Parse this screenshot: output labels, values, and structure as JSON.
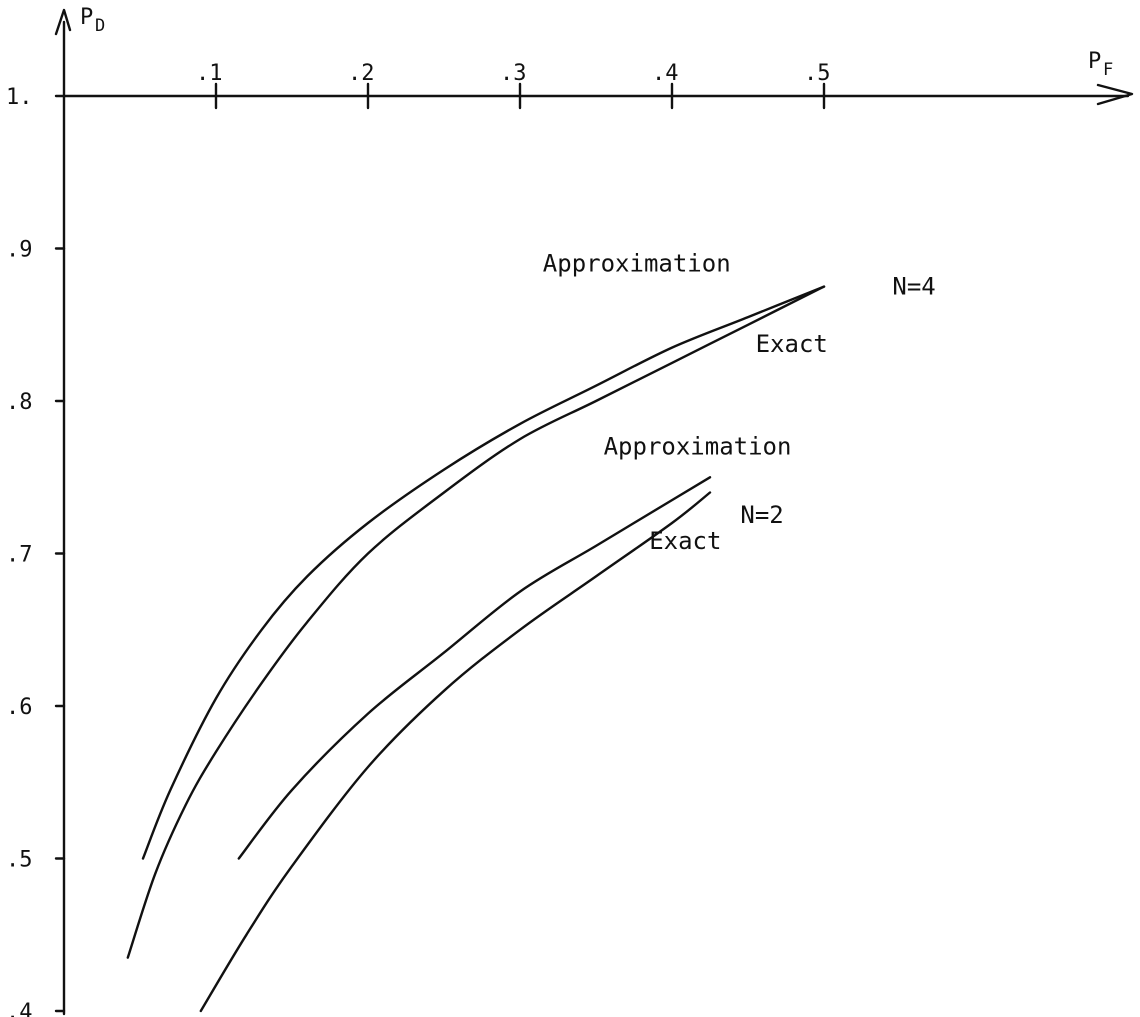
{
  "chart_data": {
    "type": "line",
    "xlabel": "P",
    "xlabel_sub": "F",
    "ylabel": "P",
    "ylabel_sub": "D",
    "xlim": [
      0,
      0.5
    ],
    "ylim": [
      0.4,
      1.0
    ],
    "x_axis_position": "top (at P_D = 1.0)",
    "grid": false,
    "x_ticks": [
      {
        "value": 0.1,
        "label": ".1"
      },
      {
        "value": 0.2,
        "label": ".2"
      },
      {
        "value": 0.3,
        "label": ".3"
      },
      {
        "value": 0.4,
        "label": ".4"
      },
      {
        "value": 0.5,
        "label": ".5"
      }
    ],
    "y_ticks": [
      {
        "value": 1.0,
        "label": "1."
      },
      {
        "value": 0.9,
        "label": ".9"
      },
      {
        "value": 0.8,
        "label": ".8"
      },
      {
        "value": 0.7,
        "label": ".7"
      },
      {
        "value": 0.6,
        "label": ".6"
      },
      {
        "value": 0.5,
        "label": ".5"
      },
      {
        "value": 0.4,
        "label": ".4"
      }
    ],
    "series": [
      {
        "x": [
          0.052,
          0.07,
          0.1,
          0.13,
          0.16,
          0.2,
          0.25,
          0.3,
          0.35,
          0.4,
          0.45,
          0.5
        ],
        "y": [
          0.5,
          0.545,
          0.605,
          0.65,
          0.685,
          0.72,
          0.755,
          0.785,
          0.81,
          0.835,
          0.855,
          0.875
        ]
      },
      {
        "x": [
          0.042,
          0.06,
          0.08,
          0.1,
          0.13,
          0.16,
          0.2,
          0.25,
          0.3,
          0.35,
          0.4,
          0.45,
          0.5
        ],
        "y": [
          0.435,
          0.49,
          0.535,
          0.57,
          0.615,
          0.655,
          0.7,
          0.74,
          0.775,
          0.8,
          0.825,
          0.85,
          0.875
        ]
      },
      {
        "x": [
          0.115,
          0.15,
          0.2,
          0.25,
          0.3,
          0.35,
          0.4,
          0.425
        ],
        "y": [
          0.5,
          0.545,
          0.595,
          0.635,
          0.675,
          0.705,
          0.735,
          0.75
        ]
      },
      {
        "x": [
          0.09,
          0.12,
          0.15,
          0.2,
          0.25,
          0.3,
          0.35,
          0.4,
          0.425
        ],
        "y": [
          0.4,
          0.45,
          0.495,
          0.56,
          0.61,
          0.65,
          0.685,
          0.72,
          0.74
        ]
      }
    ],
    "annotations": [
      {
        "text": "Approximation",
        "x": 0.315,
        "y": 0.885
      },
      {
        "text": "N=4",
        "x": 0.545,
        "y": 0.87
      },
      {
        "text": "Exact",
        "x": 0.455,
        "y": 0.832
      },
      {
        "text": "Approximation",
        "x": 0.355,
        "y": 0.765
      },
      {
        "text": "N=2",
        "x": 0.445,
        "y": 0.72
      },
      {
        "text": "Exact",
        "x": 0.385,
        "y": 0.703
      }
    ]
  }
}
